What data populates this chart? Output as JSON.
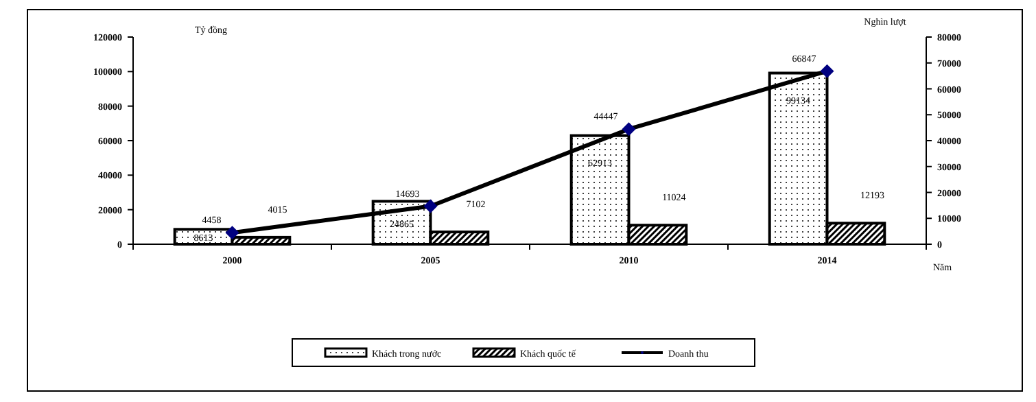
{
  "chart_data": {
    "type": "bar",
    "ylabel": "Tỷ đồng",
    "y2label": "Nghìn lượt",
    "xlabel": "Năm",
    "categories": [
      "2000",
      "2005",
      "2010",
      "2014"
    ],
    "series": [
      {
        "name": "Khách trong nước",
        "color": "#000000",
        "values": [
          8613,
          24865,
          62913,
          99134
        ]
      },
      {
        "name": "Khách quốc tế",
        "color": "#000000",
        "values": [
          4015,
          7102,
          11024,
          12193
        ]
      },
      {
        "name": "Doanh thu",
        "type": "line",
        "axis": "y2",
        "color": "#000000",
        "values": [
          4458,
          14693,
          44447,
          66847
        ]
      }
    ],
    "ylim": [
      0,
      120000
    ],
    "yticks": [
      0,
      20000,
      40000,
      60000,
      80000,
      100000,
      120000
    ],
    "y2lim": [
      0,
      80000
    ],
    "y2ticks": [
      0,
      10000,
      20000,
      30000,
      40000,
      50000,
      60000,
      70000,
      80000
    ],
    "data_labels": true,
    "marker": "diamond",
    "legend": "bottom",
    "grid": false
  }
}
